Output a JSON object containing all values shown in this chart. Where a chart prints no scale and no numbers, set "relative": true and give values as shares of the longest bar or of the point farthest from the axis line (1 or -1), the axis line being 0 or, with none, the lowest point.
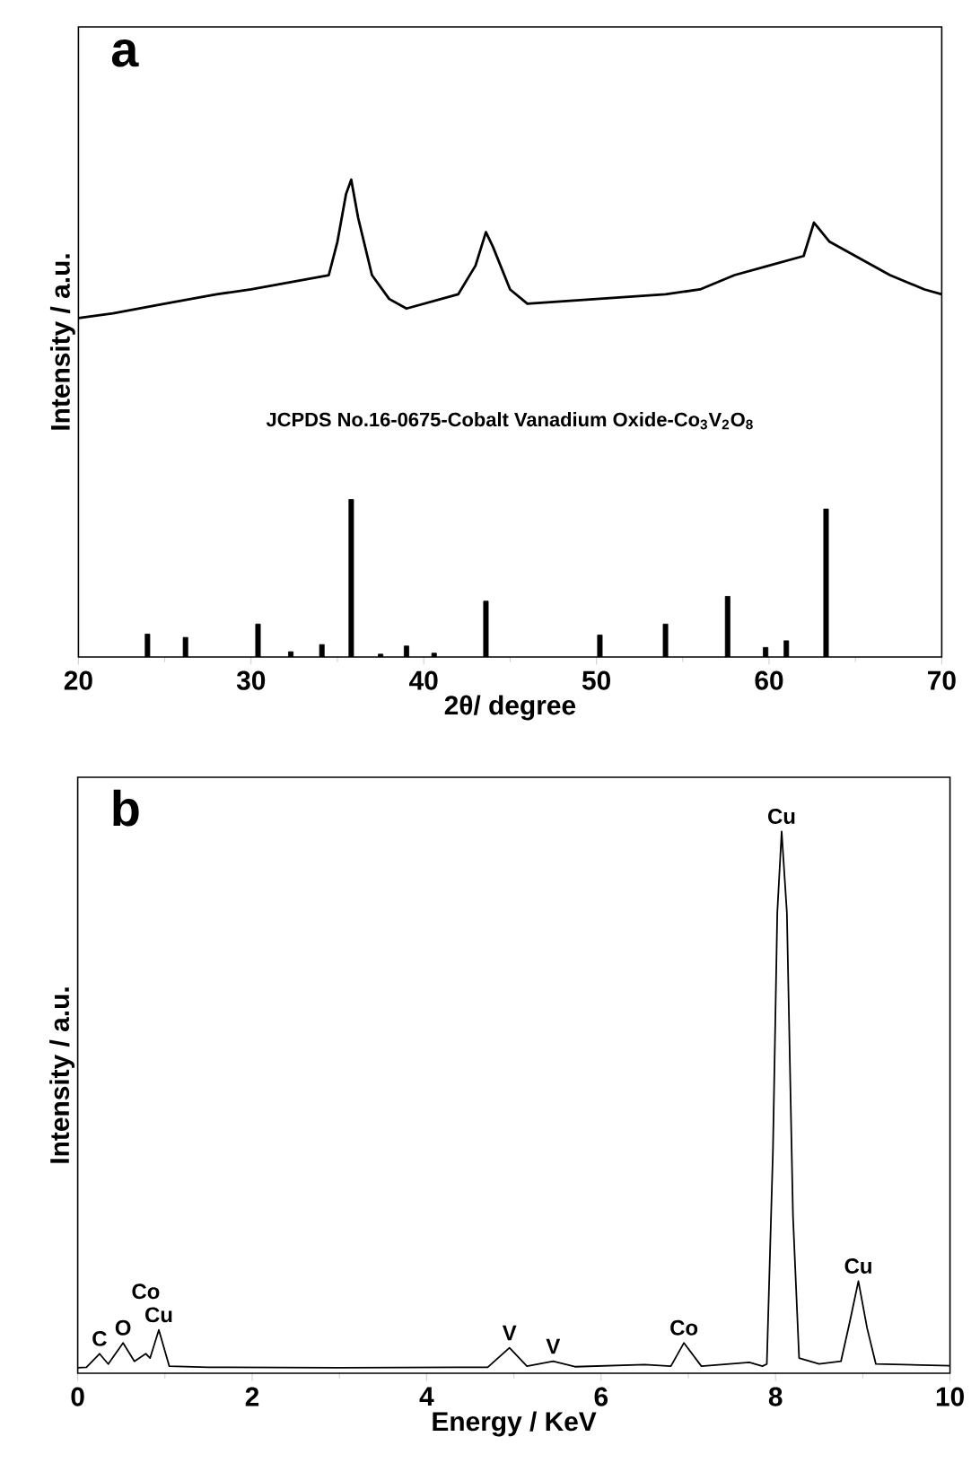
{
  "chart_data": [
    {
      "type": "line",
      "title": "a",
      "xlabel": "2θ/ degree",
      "ylabel": "Intensity / a.u.",
      "relative": true,
      "xlim": [
        20,
        70
      ],
      "xticks": [
        20,
        30,
        40,
        50,
        60,
        70
      ],
      "series": [
        {
          "color": "#000000",
          "x": [
            20,
            22,
            25,
            28,
            30,
            33,
            34.5,
            35,
            35.5,
            35.8,
            36.2,
            37,
            38,
            39,
            40,
            42,
            43,
            43.6,
            44,
            45,
            46,
            50,
            54,
            56,
            58,
            60,
            62,
            62.6,
            63.5,
            65,
            67,
            69,
            70
          ],
          "values": [
            0.71,
            0.72,
            0.74,
            0.76,
            0.77,
            0.79,
            0.8,
            0.87,
            0.97,
            1.0,
            0.92,
            0.8,
            0.75,
            0.73,
            0.74,
            0.76,
            0.82,
            0.89,
            0.86,
            0.77,
            0.74,
            0.75,
            0.76,
            0.77,
            0.8,
            0.82,
            0.84,
            0.91,
            0.87,
            0.84,
            0.8,
            0.77,
            0.76
          ]
        },
        {
          "type": "bar",
          "name": "JCPDS No.16-0675-Cobalt Vanadium Oxide-Co$_{3}$V$_{2}$O$_{8}$",
          "color": "#000000",
          "x": [
            24.0,
            26.2,
            30.4,
            32.3,
            34.1,
            35.8,
            37.5,
            39.0,
            40.6,
            43.6,
            50.2,
            54.0,
            57.6,
            59.8,
            61.0,
            63.3
          ],
          "values": [
            0.048,
            0.041,
            0.069,
            0.011,
            0.026,
            0.33,
            0.006,
            0.023,
            0.008,
            0.117,
            0.046,
            0.069,
            0.127,
            0.02,
            0.034,
            0.31
          ]
        }
      ]
    },
    {
      "type": "line",
      "title": "b",
      "xlabel": "Energy / KeV",
      "ylabel": "Intensity / a.u.",
      "relative": true,
      "xlim": [
        0,
        10
      ],
      "xticks": [
        0,
        2,
        4,
        6,
        8,
        10
      ],
      "series": [
        {
          "color": "#000000",
          "x": [
            0,
            0.1,
            0.25,
            0.35,
            0.52,
            0.65,
            0.78,
            0.83,
            0.93,
            1.05,
            1.5,
            3,
            4.7,
            4.95,
            5.15,
            5.45,
            5.7,
            6.5,
            6.8,
            6.95,
            7.15,
            7.7,
            7.85,
            7.9,
            7.97,
            8.02,
            8.07,
            8.13,
            8.2,
            8.27,
            8.5,
            8.75,
            8.85,
            8.95,
            9.05,
            9.15,
            10
          ],
          "values": [
            0.01,
            0.011,
            0.036,
            0.017,
            0.056,
            0.022,
            0.036,
            0.028,
            0.08,
            0.013,
            0.011,
            0.01,
            0.011,
            0.047,
            0.013,
            0.022,
            0.012,
            0.016,
            0.013,
            0.056,
            0.013,
            0.02,
            0.013,
            0.017,
            0.41,
            0.85,
            1.0,
            0.85,
            0.29,
            0.028,
            0.017,
            0.022,
            0.094,
            0.17,
            0.083,
            0.017,
            0.014
          ]
        }
      ],
      "annotations": [
        {
          "text": "C",
          "x": 0.25,
          "y": 0.036
        },
        {
          "text": "O",
          "x": 0.52,
          "y": 0.056
        },
        {
          "text": "Co",
          "x": 0.78,
          "y": 0.036
        },
        {
          "text": "Cu",
          "x": 0.93,
          "y": 0.08
        },
        {
          "text": "V",
          "x": 4.95,
          "y": 0.047
        },
        {
          "text": "V",
          "x": 5.45,
          "y": 0.022
        },
        {
          "text": "Co",
          "x": 6.95,
          "y": 0.056
        },
        {
          "text": "Cu",
          "x": 8.07,
          "y": 1.0
        },
        {
          "text": "Cu",
          "x": 8.95,
          "y": 0.17
        }
      ]
    }
  ]
}
